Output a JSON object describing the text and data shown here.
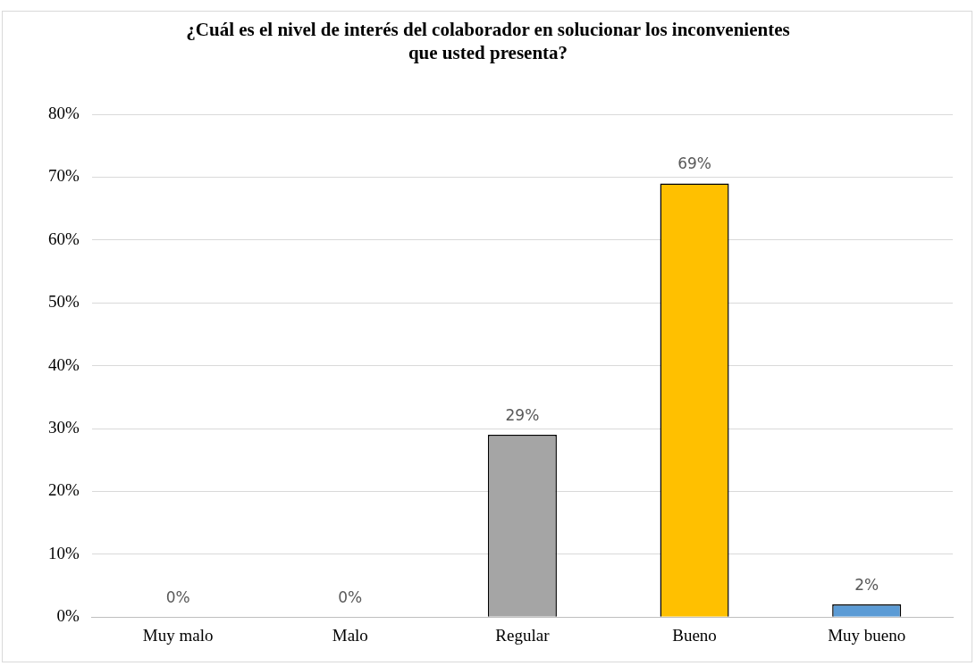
{
  "chart_data": {
    "type": "bar",
    "title": "¿Cuál es el nivel de interés del colaborador en solucionar los inconvenientes que usted presenta?",
    "categories": [
      "Muy malo",
      "Malo",
      "Regular",
      "Bueno",
      "Muy bueno"
    ],
    "values": [
      0,
      0,
      29,
      69,
      2
    ],
    "colors": [
      "#4472c4",
      "#ed7d31",
      "#a5a5a5",
      "#ffc000",
      "#5b9bd5"
    ],
    "value_labels": [
      "0%",
      "0%",
      "29%",
      "69%",
      "2%"
    ],
    "ylim": [
      0,
      80
    ],
    "yticks": [
      {
        "value": 0,
        "label": "0%"
      },
      {
        "value": 10,
        "label": "10%"
      },
      {
        "value": 20,
        "label": "20%"
      },
      {
        "value": 30,
        "label": "30%"
      },
      {
        "value": 40,
        "label": "40%"
      },
      {
        "value": 50,
        "label": "50%"
      },
      {
        "value": 60,
        "label": "60%"
      },
      {
        "value": 70,
        "label": "70%"
      },
      {
        "value": 80,
        "label": "80%"
      }
    ],
    "grid": "y",
    "legend": false
  }
}
